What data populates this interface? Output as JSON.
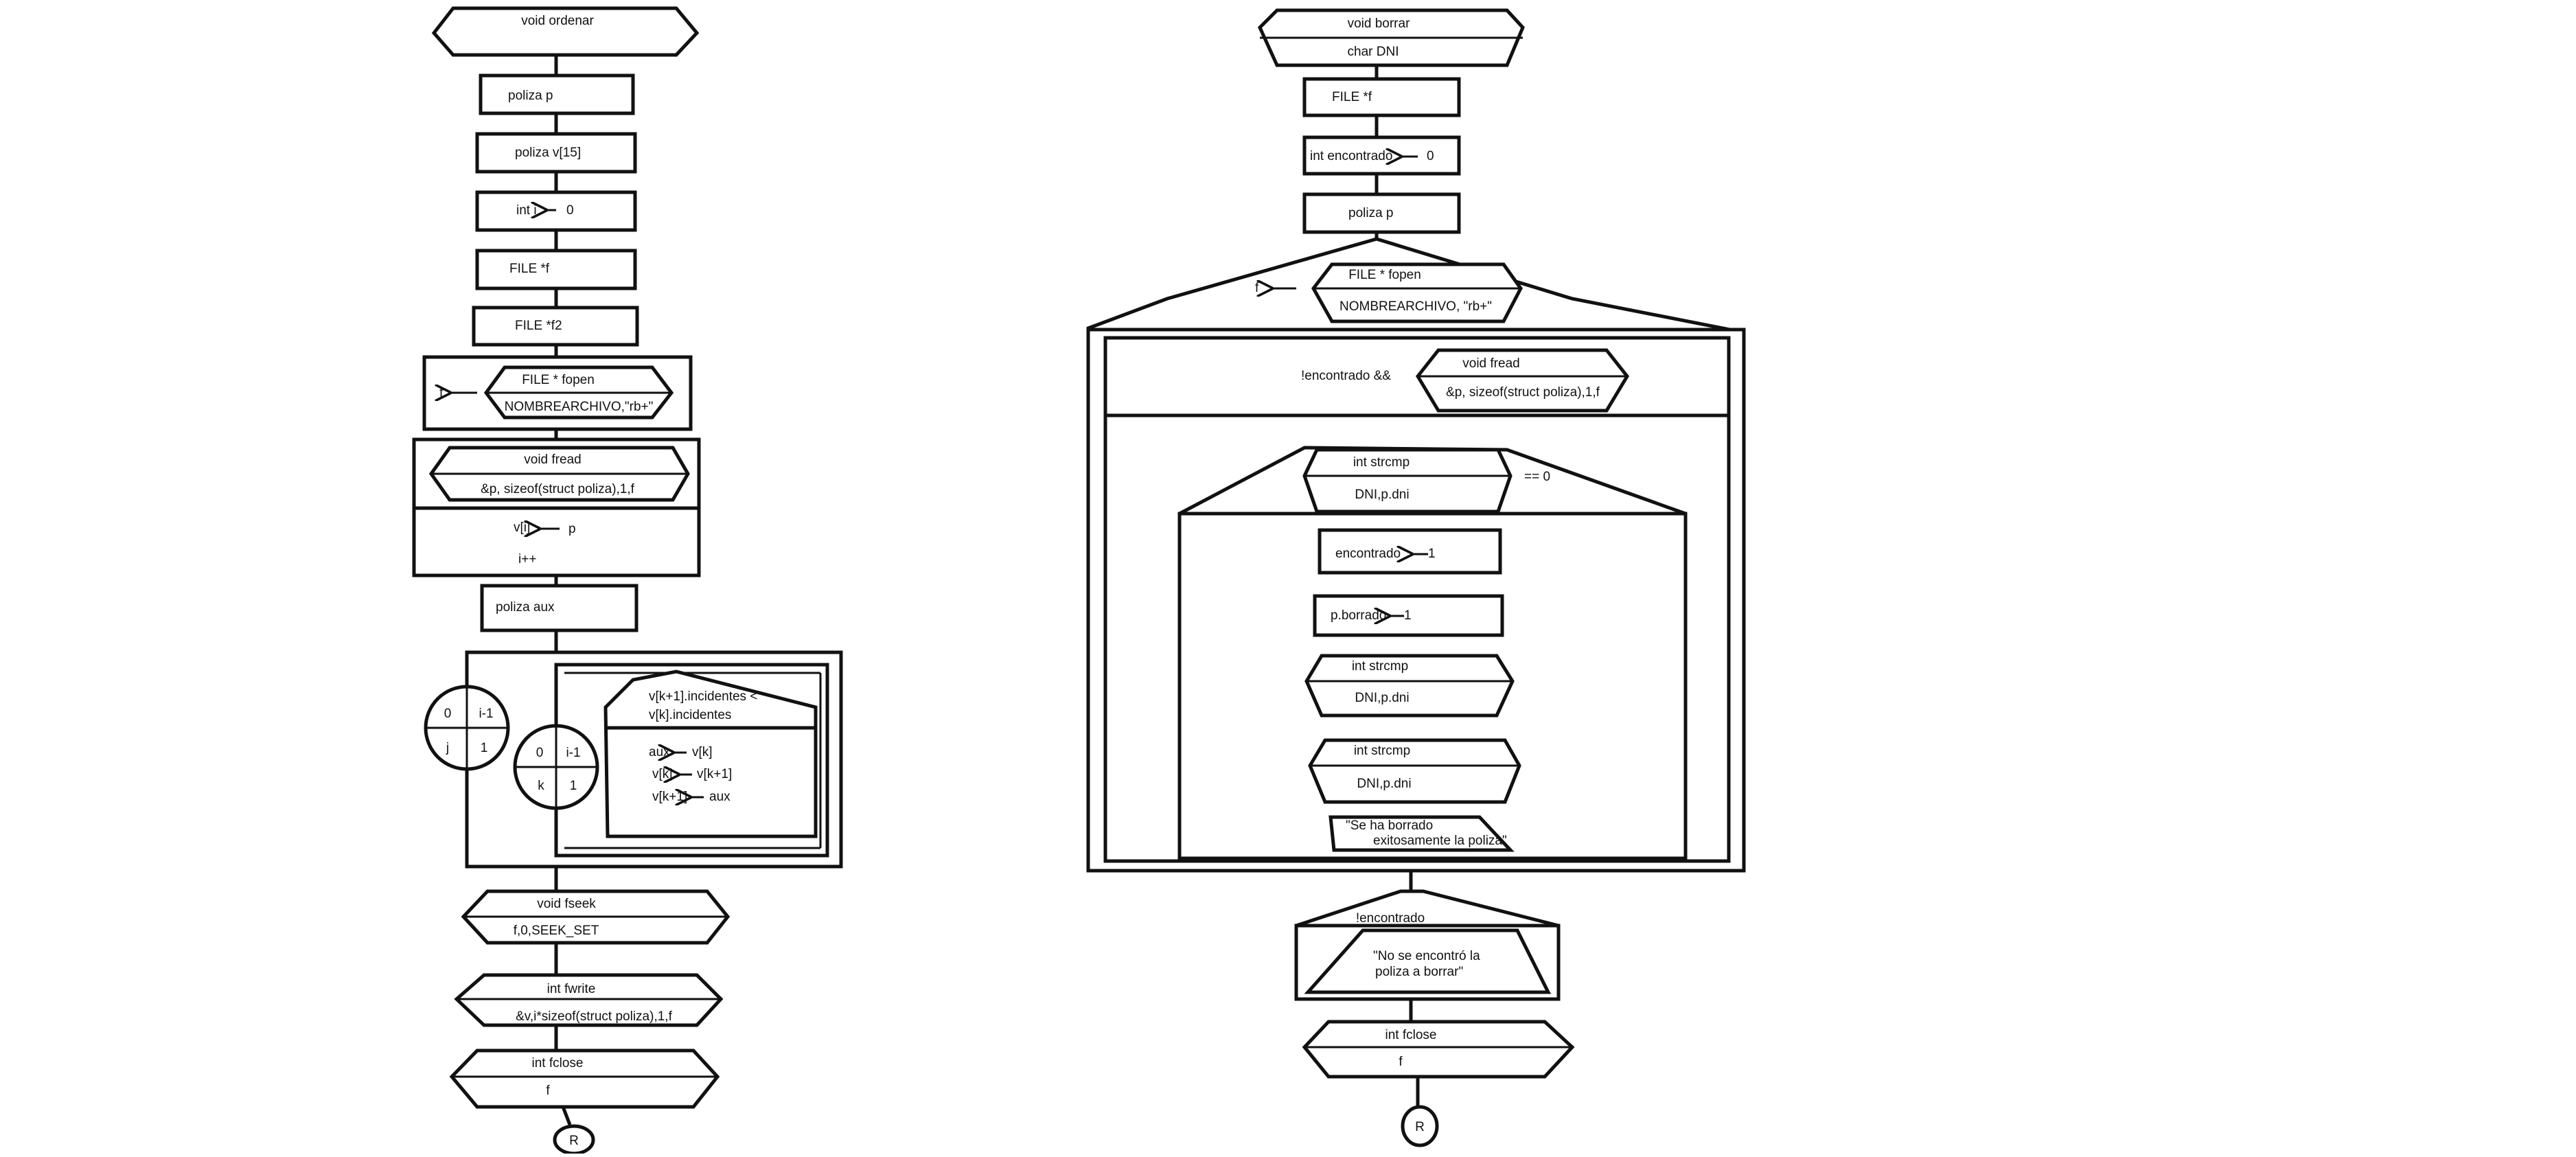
{
  "left": {
    "header": {
      "title": "void ordenar"
    },
    "decl_p": "poliza p",
    "decl_v": "poliza v[15]",
    "decl_i": {
      "name": "int i",
      "value": "0"
    },
    "decl_f": "FILE *f",
    "decl_f2": "FILE *f2",
    "assign_fopen": {
      "target": "f",
      "func": "FILE * fopen",
      "args": "NOMBREARCHIVO,\"rb+\""
    },
    "while_fread": {
      "func": "void fread",
      "args": "&p, sizeof(struct poliza),1,f",
      "assign_target": "v[i]",
      "assign_value": "p",
      "increment": "i++"
    },
    "decl_aux": "poliza aux",
    "for_outer": {
      "start": "0",
      "end": "i-1",
      "var": "j",
      "step": "1"
    },
    "for_inner": {
      "start": "0",
      "end": "i-1",
      "var": "k",
      "step": "1"
    },
    "if_swap": {
      "condition_line1": "v[k+1].incidentes <",
      "condition_line2": "v[k].incidentes",
      "swap1_target": "aux",
      "swap1_value": "v[k]",
      "swap2_target": "v[k]",
      "swap2_value": "v[k+1]",
      "swap3_target": "v[k+1]",
      "swap3_value": "aux"
    },
    "fseek": {
      "func": "void fseek",
      "args": "f,0,SEEK_SET"
    },
    "fwrite": {
      "func": "int fwrite",
      "args": "&v,i*sizeof(struct poliza),1,f"
    },
    "fclose": {
      "func": "int fclose",
      "args": "f"
    },
    "end_label": "R"
  },
  "right": {
    "header": {
      "title": "void borrar",
      "param": "char DNI"
    },
    "decl_f": "FILE *f",
    "decl_encontrado": {
      "name": "int encontrado",
      "value": "0"
    },
    "decl_p": "poliza p",
    "assign_fopen": {
      "target": "f",
      "func": "FILE * fopen",
      "args": "NOMBREARCHIVO, \"rb+\""
    },
    "while_fread": {
      "prefix": "!encontrado &&",
      "func": "void fread",
      "args": "&p, sizeof(struct poliza),1,f"
    },
    "if_strcmp": {
      "func": "int strcmp",
      "args": "DNI,p.dni",
      "compare": "== 0"
    },
    "assign_encontrado": {
      "target": "encontrado",
      "value": "1"
    },
    "assign_borrado": {
      "target": "p.borrado",
      "value": "1"
    },
    "strcmp2": {
      "func": "int strcmp",
      "args": "DNI,p.dni"
    },
    "strcmp3": {
      "func": "int strcmp",
      "args": "DNI,p.dni"
    },
    "output_success": {
      "line1": "\"Se ha borrado",
      "line2": "exitosamente la poliza\""
    },
    "if_not_found": {
      "condition": "!encontrado",
      "line1": "\"No se encontró la",
      "line2": "poliza a borrar\""
    },
    "fclose": {
      "func": "int fclose",
      "args": "f"
    },
    "end_label": "R"
  }
}
